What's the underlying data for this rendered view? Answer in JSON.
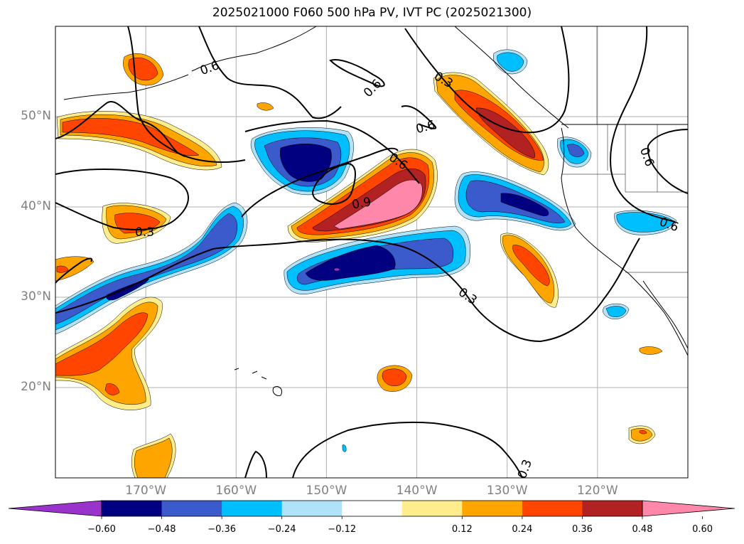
{
  "title": "2025021000 F060 500 hPa PV, IVT PC (2025021300)",
  "map": {
    "projection": "lat-lon",
    "extent": {
      "lon_min": -180,
      "lon_max": -110,
      "lat_min": 10,
      "lat_max": 60
    },
    "grid": true,
    "lat_labels": [
      {
        "lat": 50,
        "label": "50°N"
      },
      {
        "lat": 40,
        "label": "40°N"
      },
      {
        "lat": 30,
        "label": "30°N"
      },
      {
        "lat": 20,
        "label": "20°N"
      }
    ],
    "lon_labels": [
      {
        "lon": -170,
        "label": "170°W"
      },
      {
        "lon": -160,
        "label": "160°W"
      },
      {
        "lon": -150,
        "label": "150°W"
      },
      {
        "lon": -140,
        "label": "140°W"
      },
      {
        "lon": -130,
        "label": "130°W"
      },
      {
        "lon": -120,
        "label": "120°W"
      }
    ],
    "contour_labels": [
      "0.6",
      "0.6",
      "0.6",
      "0.6",
      "0.3",
      "0.9",
      "0.3",
      "0.3",
      "0.6",
      "0.6",
      "0.3"
    ]
  },
  "colorbar": {
    "colors": [
      "#9933cc",
      "#000080",
      "#3b5bcc",
      "#00bfff",
      "#b0e2fa",
      "#ffffff",
      "#ffec8b",
      "#ffa500",
      "#ff4500",
      "#b22222",
      "#ff88aa"
    ],
    "ticks": [
      "−0.60",
      "−0.48",
      "−0.36",
      "−0.24",
      "−0.12",
      "0.12",
      "0.24",
      "0.36",
      "0.48",
      "0.60"
    ]
  }
}
